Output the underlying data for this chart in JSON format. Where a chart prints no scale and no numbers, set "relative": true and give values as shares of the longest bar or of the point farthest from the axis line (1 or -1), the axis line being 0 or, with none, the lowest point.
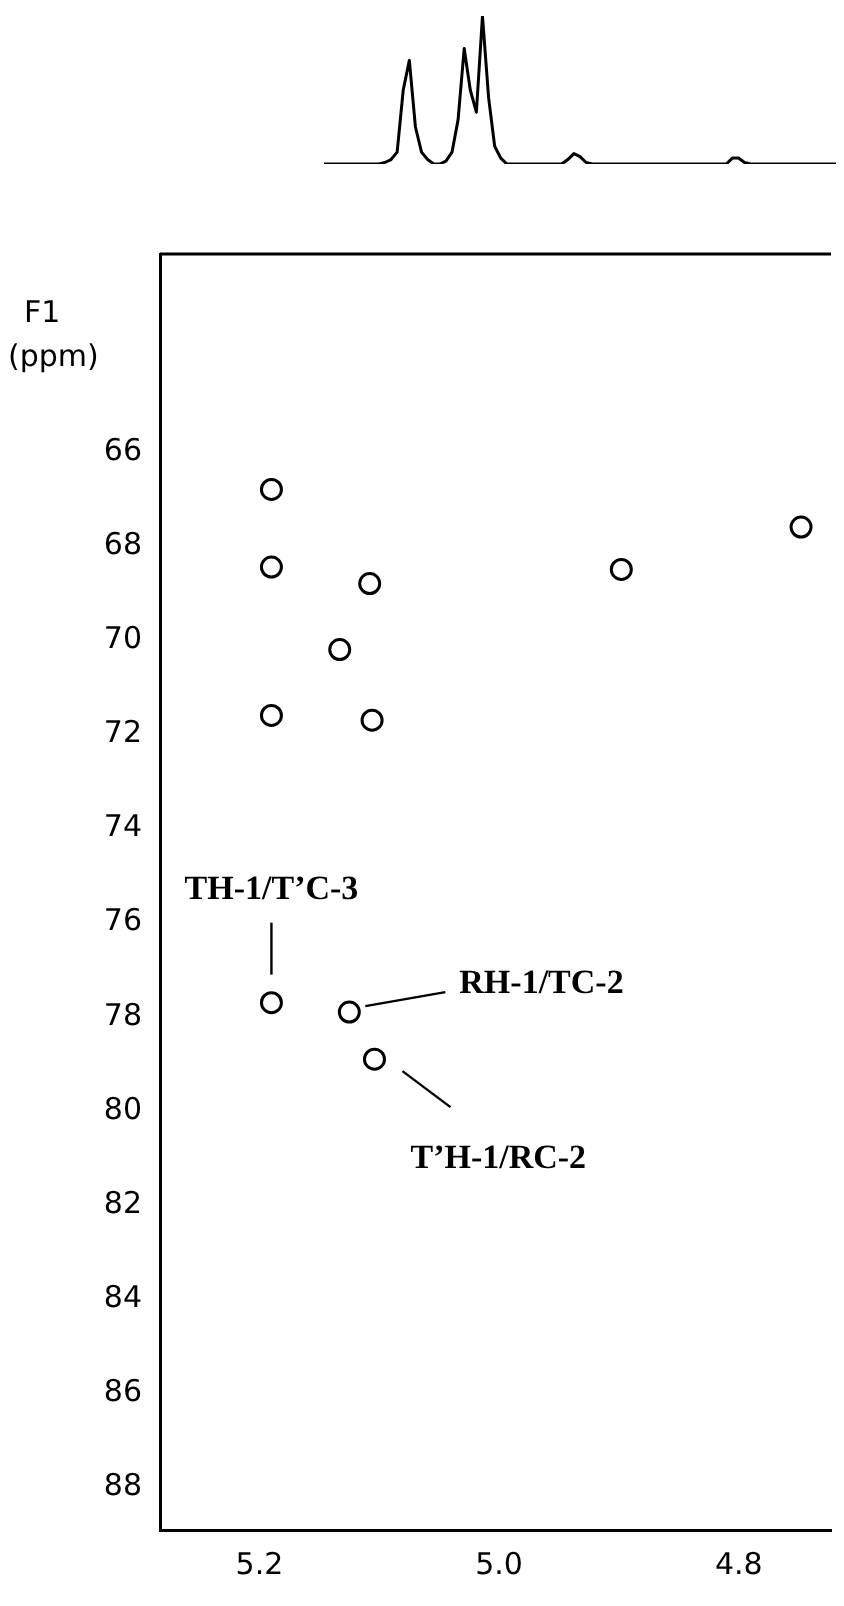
{
  "chart_data": [
    {
      "type": "line",
      "relative": true,
      "grid": false,
      "legend": false,
      "marker": "none",
      "line_style": "solid",
      "categories": [
        null,
        null,
        null,
        null,
        null,
        null,
        null,
        null,
        null,
        null,
        null,
        null,
        null,
        null,
        null,
        null,
        null,
        null,
        null,
        null,
        null,
        null,
        null,
        null,
        null,
        null,
        null,
        null,
        null,
        null,
        null,
        null,
        null,
        null,
        null,
        null,
        null,
        null,
        null,
        null,
        null,
        null,
        null,
        null,
        null,
        null,
        null,
        null,
        null,
        null,
        null,
        null,
        null,
        null,
        null,
        null,
        null,
        null,
        null,
        null,
        null,
        null,
        null,
        null,
        null,
        null,
        null,
        null,
        null,
        null,
        null,
        null,
        null,
        null,
        null,
        null,
        null,
        null,
        null,
        null,
        null,
        null,
        null,
        null,
        null
      ],
      "series": [
        {
          "color": "#000000",
          "values": [
            0,
            0,
            0,
            0,
            0,
            0,
            0,
            0,
            0,
            0,
            0.01,
            0.03,
            0.08,
            0.5,
            0.7,
            0.25,
            0.08,
            0.03,
            0,
            0,
            0.02,
            0.08,
            0.3,
            0.78,
            0.5,
            0.35,
            1,
            0.45,
            0.12,
            0.04,
            0,
            0,
            0,
            0,
            0,
            0,
            0,
            0,
            0,
            0,
            0.03,
            0.07,
            0.05,
            0.01,
            0,
            0,
            0,
            0,
            0,
            0,
            0,
            0,
            0,
            0,
            0,
            0,
            0,
            0,
            0,
            0,
            0,
            0,
            0,
            0,
            0,
            0,
            0,
            0.04,
            0.04,
            0.01,
            0,
            0,
            0,
            0,
            0,
            0,
            0,
            0,
            0,
            0,
            0,
            0,
            0,
            0,
            0
          ]
        }
      ]
    },
    {
      "type": "scatter",
      "ylabel": "F1 (ppm)",
      "xlim": [
        5.283,
        4.723
      ],
      "ylim": [
        88.9,
        61.8
      ],
      "xticks": [
        5.2,
        {
          "value": 5,
          "label": "5.0"
        },
        4.8
      ],
      "yticks": [
        66,
        68,
        70,
        72,
        74,
        76,
        78,
        80,
        82,
        84,
        86,
        88
      ],
      "grid": false,
      "legend": false,
      "marker": "circle",
      "series": [
        {
          "color": "#000000",
          "x": [
            5.19,
            5.19,
            5.108,
            5.19,
            5.133,
            5.106,
            4.898,
            4.748,
            5.19,
            5.125,
            5.104
          ],
          "values": [
            66.8,
            68.45,
            68.8,
            71.6,
            70.2,
            71.7,
            68.5,
            67.6,
            77.7,
            77.9,
            78.9
          ]
        }
      ],
      "annotations": [
        {
          "text": "TH-1/T’C-3",
          "x": 5.19,
          "y": 77.7
        },
        {
          "text": "RH-1/TC-2",
          "x": 5.125,
          "y": 77.9
        },
        {
          "text": "T’H-1/RC-2",
          "x": 5.104,
          "y": 78.9
        }
      ]
    }
  ]
}
